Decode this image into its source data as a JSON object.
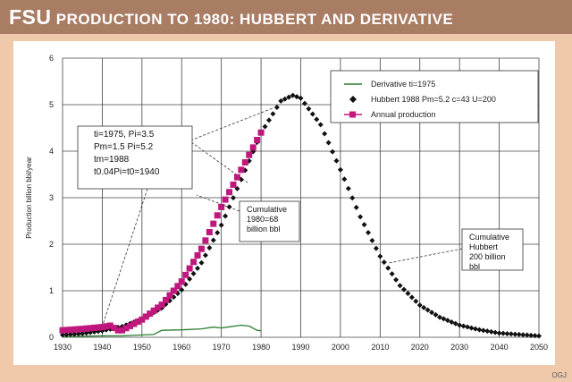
{
  "header": {
    "title_lead": "FSU",
    "title_rest": "PRODUCTION TO 1980: HUBBERT AND DERIVATIVE"
  },
  "credit": "OGJ",
  "chart_data": {
    "type": "line",
    "ylabel": "Production billion bbl/year",
    "xlim": [
      1930,
      2050
    ],
    "ylim": [
      0,
      6
    ],
    "xticks": [
      1930,
      1940,
      1950,
      1960,
      1970,
      1980,
      1990,
      2000,
      2010,
      2020,
      2030,
      2040,
      2050
    ],
    "yticks": [
      0,
      1,
      2,
      3,
      4,
      5,
      6
    ],
    "grid": true,
    "legend_placement": "top-right",
    "series": [
      {
        "name": "Derivative ti=1975",
        "color": "#2e7d32",
        "marker": "line",
        "x": [
          1930,
          1935,
          1940,
          1945,
          1950,
          1953,
          1955,
          1960,
          1965,
          1968,
          1970,
          1975,
          1977,
          1979,
          1980
        ],
        "y": [
          0.01,
          0.02,
          0.03,
          0.03,
          0.05,
          0.06,
          0.15,
          0.16,
          0.18,
          0.22,
          0.2,
          0.26,
          0.24,
          0.15,
          0.14
        ]
      },
      {
        "name": "Hubbert 1988 Pm=5.2 c=43 U=200",
        "color": "#111111",
        "marker": "diamond",
        "x": [
          1930,
          1935,
          1940,
          1945,
          1950,
          1955,
          1960,
          1965,
          1970,
          1975,
          1980,
          1985,
          1988,
          1990,
          1995,
          2000,
          2005,
          2010,
          2015,
          2020,
          2025,
          2030,
          2035,
          2040,
          2045,
          2050
        ],
        "y": [
          0.05,
          0.08,
          0.14,
          0.23,
          0.39,
          0.63,
          1.02,
          1.6,
          2.41,
          3.39,
          4.39,
          5.08,
          5.2,
          5.14,
          4.57,
          3.6,
          2.59,
          1.74,
          1.11,
          0.69,
          0.43,
          0.26,
          0.16,
          0.09,
          0.06,
          0.03
        ]
      },
      {
        "name": "Annual production",
        "color": "#c0177e",
        "marker": "square",
        "x": [
          1930,
          1935,
          1940,
          1942,
          1944,
          1945,
          1950,
          1955,
          1960,
          1965,
          1970,
          1975,
          1980
        ],
        "y": [
          0.15,
          0.18,
          0.22,
          0.25,
          0.15,
          0.15,
          0.38,
          0.7,
          1.2,
          1.9,
          2.8,
          3.6,
          4.4
        ]
      }
    ],
    "annotations": [
      {
        "lines": [
          "ti=1975, Pi=3.5",
          "Pm=1.5 Pi=5.2",
          "tm=1988",
          "t0.04Pi=t0=1940"
        ]
      },
      {
        "lines": [
          "Cumulative",
          "1980=68",
          "billion bbl"
        ]
      },
      {
        "lines": [
          "Cumulative",
          "Hubbert",
          "200 billion",
          "bbl"
        ]
      }
    ]
  }
}
